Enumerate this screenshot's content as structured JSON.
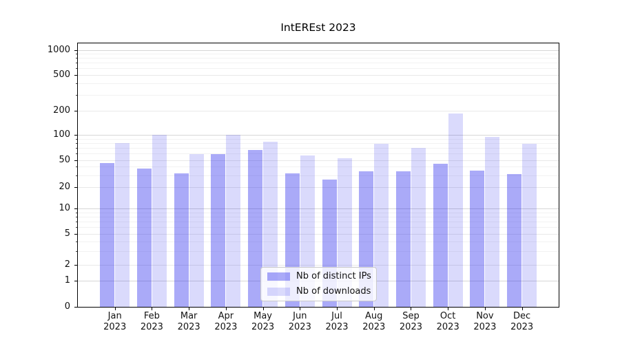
{
  "figure": {
    "title": "IntEREst 2023"
  },
  "chart_data": {
    "type": "bar",
    "title": "IntEREst 2023",
    "y_scale": "symlog",
    "categories": [
      "Jan",
      "Feb",
      "Mar",
      "Apr",
      "May",
      "Jun",
      "Jul",
      "Aug",
      "Sep",
      "Oct",
      "Nov",
      "Dec"
    ],
    "category_year": "2023",
    "series": [
      {
        "name": "Nb of distinct IPs",
        "color": "rgba(20,20,235,0.36)",
        "values": [
          45,
          38,
          32,
          59,
          66,
          32,
          26,
          34,
          34,
          44,
          35,
          31
        ]
      },
      {
        "name": "Nb of downloads",
        "color": "rgba(20,20,235,0.155)",
        "values": [
          80,
          100,
          59,
          100,
          83,
          57,
          53,
          78,
          70,
          184,
          94,
          79
        ]
      }
    ],
    "y_ticks": [
      0,
      1,
      2,
      5,
      10,
      20,
      50,
      100,
      200,
      500,
      1000
    ],
    "y_minor_gridlines": [
      3,
      4,
      6,
      7,
      8,
      9,
      30,
      40,
      60,
      70,
      80,
      90,
      300,
      400,
      600,
      700,
      800,
      900
    ],
    "ylim": [
      0,
      1000
    ],
    "grid": true,
    "legend_position": "lower center inside",
    "colors": {
      "axis": "#000000",
      "grid_decade": "#d6d6d6",
      "grid_labeled": "#e8e8e8",
      "grid_minor": "#f2f2f2",
      "background": "#ffffff"
    }
  }
}
